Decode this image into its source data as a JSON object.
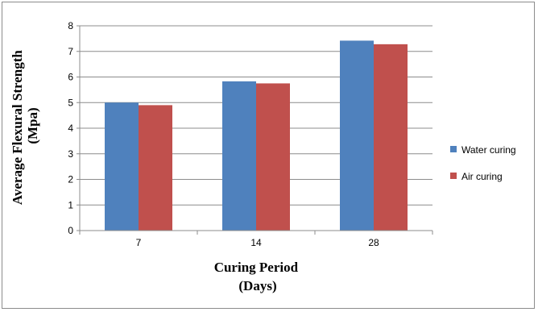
{
  "chart_data": {
    "type": "bar",
    "categories": [
      "7",
      "14",
      "28"
    ],
    "series": [
      {
        "name": "Water curing",
        "values": [
          5.0,
          5.83,
          7.42
        ],
        "color": "#4f81bd"
      },
      {
        "name": "Air curing",
        "values": [
          4.9,
          5.75,
          7.28
        ],
        "color": "#c0504d"
      }
    ],
    "ylabel_lines": [
      "Average Flexural Strength",
      "(Mpa)"
    ],
    "xlabel_lines": [
      "Curing Period",
      "(Days)"
    ],
    "ylim": [
      0,
      8
    ],
    "yticks": [
      "0",
      "1",
      "2",
      "3",
      "4",
      "5",
      "6",
      "7",
      "8"
    ],
    "grid": true,
    "legend_position": "right"
  }
}
